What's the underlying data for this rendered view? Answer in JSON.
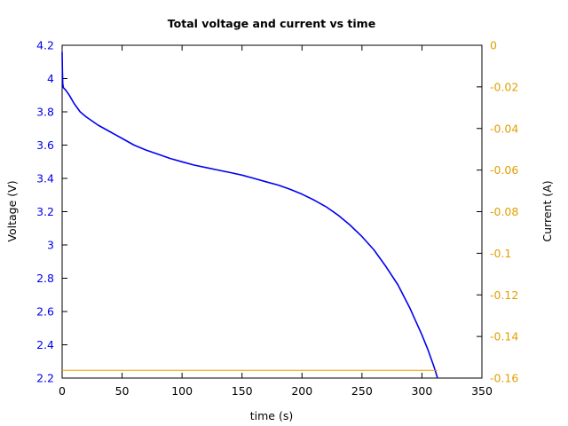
{
  "chart_data": {
    "type": "line",
    "title": "Total voltage and current vs time",
    "xlabel": "time (s)",
    "ylabel_left": "Voltage (V)",
    "ylabel_right": "Current (A)",
    "xlim": [
      0,
      350
    ],
    "ylim_left": [
      2.2,
      4.2
    ],
    "ylim_right": [
      -0.16,
      0
    ],
    "x_ticks": [
      "0",
      "50",
      "100",
      "150",
      "200",
      "250",
      "300",
      "350"
    ],
    "y_left_ticks": [
      "2.2",
      "2.4",
      "2.6",
      "2.8",
      "3",
      "3.2",
      "3.4",
      "3.6",
      "3.8",
      "4",
      "4.2"
    ],
    "y_right_ticks": [
      "0",
      "-0.02",
      "-0.04",
      "-0.06",
      "-0.08",
      "-0.1",
      "-0.12",
      "-0.14",
      "-0.16"
    ],
    "grid": false,
    "colors": {
      "voltage": "#0000ee",
      "current": "#e0a000",
      "left_axis_text": "#0000ee",
      "right_axis_text": "#e0a000"
    },
    "series": [
      {
        "axis": "left",
        "x": [
          0,
          0.2,
          0.5,
          1,
          3,
          6,
          10,
          15,
          20,
          30,
          40,
          50,
          60,
          70,
          80,
          90,
          100,
          110,
          120,
          130,
          140,
          150,
          160,
          170,
          180,
          190,
          200,
          210,
          220,
          230,
          240,
          250,
          260,
          270,
          280,
          290,
          300,
          305,
          310,
          313
        ],
        "values": [
          4.16,
          4.05,
          3.97,
          3.945,
          3.93,
          3.9,
          3.85,
          3.8,
          3.77,
          3.72,
          3.68,
          3.64,
          3.6,
          3.57,
          3.545,
          3.52,
          3.5,
          3.48,
          3.465,
          3.45,
          3.435,
          3.42,
          3.4,
          3.38,
          3.36,
          3.335,
          3.305,
          3.27,
          3.23,
          3.18,
          3.12,
          3.05,
          2.97,
          2.87,
          2.76,
          2.62,
          2.46,
          2.37,
          2.27,
          2.17
        ]
      },
      {
        "axis": "right",
        "x": [
          0,
          313
        ],
        "values": [
          -0.1563,
          -0.1563
        ]
      }
    ]
  }
}
